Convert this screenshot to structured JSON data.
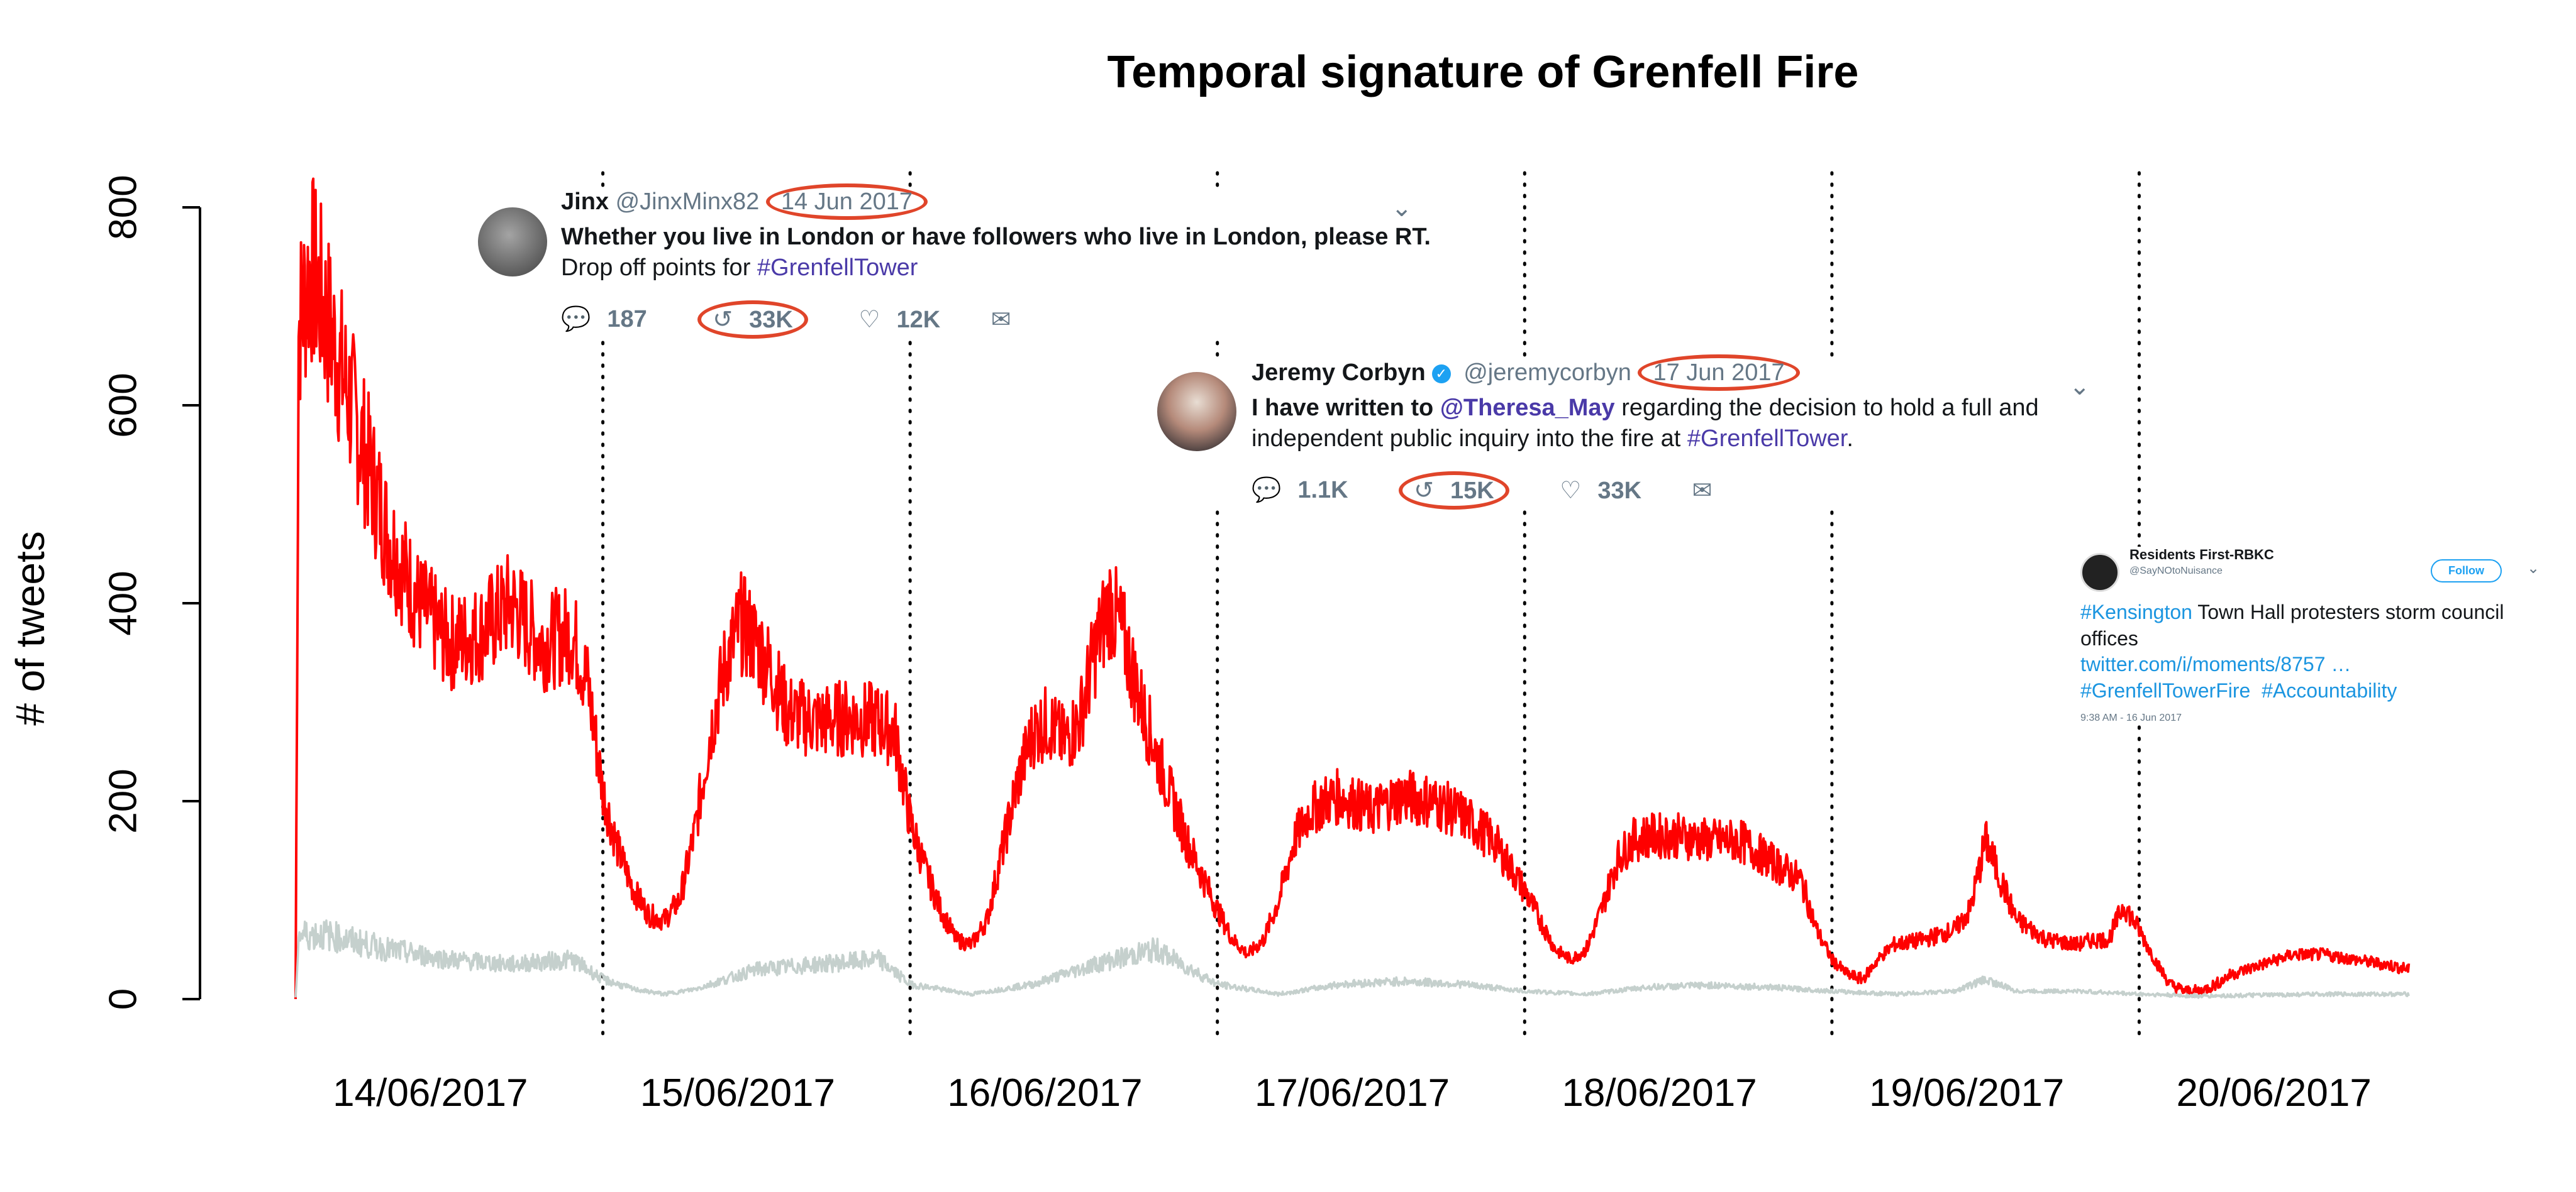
{
  "chart_data": {
    "type": "line",
    "title": "Temporal signature of Grenfell Fire",
    "xlabel": "",
    "ylabel": "# of tweets",
    "ylim": [
      0,
      800
    ],
    "yticks": [
      0,
      200,
      400,
      600,
      800
    ],
    "xlim": [
      0,
      7
    ],
    "x_tick_positions_days": [
      0.5,
      1.5,
      2.5,
      3.5,
      4.5,
      5.5,
      6.5
    ],
    "x_tick_labels": [
      "14/06/2017",
      "15/06/2017",
      "16/06/2017",
      "17/06/2017",
      "18/06/2017",
      "19/06/2017",
      "20/06/2017"
    ],
    "vlines_days": [
      1,
      2,
      3,
      4,
      5,
      6
    ],
    "grid": false,
    "series": [
      {
        "color": "#ff0000",
        "x": [
          0.0,
          0.01,
          0.05,
          0.1,
          0.2,
          0.3,
          0.4,
          0.5,
          0.6,
          0.7,
          0.8,
          0.9,
          0.95,
          1.0,
          1.05,
          1.1,
          1.15,
          1.2,
          1.25,
          1.3,
          1.35,
          1.4,
          1.45,
          1.5,
          1.55,
          1.6,
          1.7,
          1.8,
          1.9,
          1.95,
          2.0,
          2.05,
          2.1,
          2.15,
          2.2,
          2.25,
          2.3,
          2.35,
          2.4,
          2.45,
          2.5,
          2.55,
          2.6,
          2.65,
          2.7,
          2.75,
          2.8,
          2.9,
          3.0,
          3.05,
          3.1,
          3.15,
          3.2,
          3.25,
          3.3,
          3.35,
          3.4,
          3.5,
          3.6,
          3.7,
          3.8,
          3.9,
          4.0,
          4.05,
          4.1,
          4.15,
          4.2,
          4.25,
          4.3,
          4.35,
          4.4,
          4.5,
          4.6,
          4.7,
          4.8,
          4.9,
          4.95,
          5.0,
          5.05,
          5.1,
          5.15,
          5.2,
          5.3,
          5.4,
          5.45,
          5.5,
          5.6,
          5.7,
          5.8,
          5.85,
          5.9,
          5.95,
          6.0,
          6.05,
          6.1,
          6.15,
          6.2,
          6.25,
          6.3,
          6.4,
          6.5,
          6.6,
          6.7,
          6.8,
          6.88
        ],
        "y": [
          0,
          680,
          740,
          690,
          580,
          470,
          400,
          360,
          370,
          400,
          360,
          370,
          320,
          210,
          150,
          110,
          85,
          80,
          100,
          170,
          270,
          340,
          380,
          360,
          330,
          290,
          280,
          285,
          280,
          270,
          180,
          130,
          90,
          60,
          55,
          80,
          150,
          220,
          270,
          280,
          260,
          280,
          350,
          400,
          360,
          300,
          250,
          160,
          90,
          60,
          45,
          60,
          100,
          160,
          190,
          200,
          205,
          190,
          205,
          200,
          185,
          160,
          110,
          80,
          50,
          40,
          50,
          90,
          140,
          160,
          165,
          165,
          160,
          160,
          140,
          120,
          70,
          40,
          25,
          20,
          40,
          55,
          60,
          70,
          90,
          160,
          80,
          60,
          55,
          60,
          60,
          95,
          70,
          40,
          15,
          8,
          8,
          15,
          25,
          35,
          45,
          45,
          40,
          35,
          30
        ]
      },
      {
        "color": "#c5d0cd",
        "x": [
          0.0,
          0.01,
          0.1,
          0.3,
          0.5,
          0.7,
          0.9,
          1.0,
          1.1,
          1.2,
          1.3,
          1.5,
          1.7,
          1.9,
          2.0,
          2.2,
          2.4,
          2.6,
          2.8,
          3.0,
          3.2,
          3.4,
          3.6,
          3.8,
          4.0,
          4.2,
          4.4,
          4.6,
          4.8,
          5.0,
          5.2,
          5.4,
          5.5,
          5.6,
          5.8,
          6.0,
          6.2,
          6.4,
          6.6,
          6.88
        ],
        "y": [
          0,
          65,
          65,
          50,
          40,
          35,
          40,
          20,
          10,
          5,
          10,
          30,
          35,
          40,
          15,
          5,
          15,
          35,
          50,
          15,
          5,
          15,
          18,
          15,
          8,
          5,
          12,
          14,
          12,
          8,
          5,
          8,
          20,
          8,
          8,
          5,
          3,
          4,
          5,
          5
        ]
      }
    ]
  },
  "tweets": {
    "jinx": {
      "name": "Jinx",
      "handle": "@JinxMinx82",
      "date": "14 Jun 2017",
      "text_bold": "Whether you live in London or have followers who live in London, please RT.",
      "text_plain": "Drop off points for ",
      "hashtag": "#GrenfellTower",
      "replies": "187",
      "retweets": "33K",
      "likes": "12K"
    },
    "corbyn": {
      "name": "Jeremy Corbyn",
      "handle": "@jeremycorbyn",
      "date": "17 Jun 2017",
      "text_a": "I have written to ",
      "mention": "@Theresa_May",
      "text_b": " regarding the decision to hold a full and",
      "text_c": "independent public inquiry into the fire at ",
      "hashtag": "#GrenfellTower",
      "text_d": ".",
      "replies": "1.1K",
      "retweets": "15K",
      "likes": "33K"
    },
    "rbkc": {
      "name": "Residents First-RBKC",
      "handle": "@SayNOtoNuisance",
      "follow_label": "Follow",
      "hashtag1": "#Kensington",
      "text1": " Town Hall protesters storm council offices",
      "link": "twitter.com/i/moments/8757 …",
      "hashtag2": "#GrenfellTowerFire",
      "hashtag3": "#Accountability",
      "time": "9:38 AM - 16 Jun 2017"
    }
  },
  "colors": {
    "highlight_ring": "#e0452a",
    "twitter_blue": "#1da1f2",
    "hashtag_purple": "#4a3aa8"
  },
  "icons": [
    "reply-icon",
    "retweet-icon",
    "like-icon",
    "mail-icon",
    "chevron-down-icon",
    "verified-badge-icon"
  ]
}
